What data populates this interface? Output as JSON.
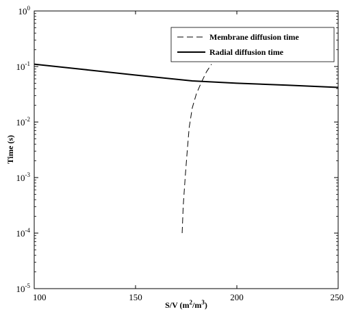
{
  "chart_data": {
    "type": "line",
    "title": "",
    "xlabel": {
      "base": "S/V (m",
      "sup1": "2",
      "mid": "/m",
      "sup2": "3",
      "end": ")"
    },
    "ylabel": "Time (s)",
    "xlim": [
      100,
      250
    ],
    "ylim": [
      1e-05,
      1
    ],
    "yscale": "log",
    "x_ticks": [
      "100",
      "150",
      "200",
      "250"
    ],
    "y_ticks": [
      {
        "base": "10",
        "exp": "-5"
      },
      {
        "base": "10",
        "exp": "-4"
      },
      {
        "base": "10",
        "exp": "-3"
      },
      {
        "base": "10",
        "exp": "-2"
      },
      {
        "base": "10",
        "exp": "-1"
      },
      {
        "base": "10",
        "exp": "0"
      }
    ],
    "grid": false,
    "legend_position": "top-right",
    "series": [
      {
        "name": "Membrane diffusion time",
        "style": "dashed",
        "color": "#000000",
        "x": [
          173,
          173.5,
          174.5,
          175.5,
          176.5,
          178,
          180,
          182.5,
          185,
          187.5
        ],
        "y": [
          0.0001,
          0.0003,
          0.001,
          0.003,
          0.008,
          0.018,
          0.032,
          0.052,
          0.08,
          0.11
        ]
      },
      {
        "name": "Radial diffusion time",
        "style": "solid",
        "color": "#000000",
        "x": [
          100,
          125,
          150,
          178,
          200,
          225,
          250
        ],
        "y": [
          0.11,
          0.088,
          0.07,
          0.055,
          0.05,
          0.046,
          0.042
        ]
      }
    ]
  }
}
